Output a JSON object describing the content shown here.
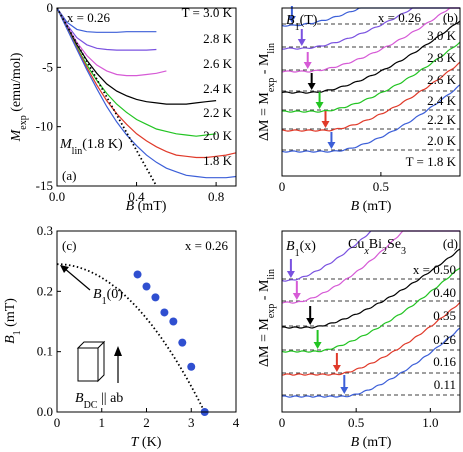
{
  "chart_data": [
    {
      "id": "a",
      "type": "line",
      "panel_label": "(a)",
      "xlabel_main": "B",
      "xlabel_unit": " (mT)",
      "ylabel_main": "M",
      "ylabel_sub": "exp",
      "ylabel_unit": " (emu/mol)",
      "xlim": [
        0,
        0.9
      ],
      "ylim": [
        -15,
        0
      ],
      "xticks": [
        0.0,
        0.4,
        0.8
      ],
      "xtick_labels": [
        "0.0",
        "0.4",
        "0.8"
      ],
      "yticks": [
        0,
        -5,
        -10,
        -15
      ],
      "ytick_labels": [
        "0",
        "-5",
        "-10",
        "-15"
      ],
      "annotation": "x = 0.26",
      "line_label": {
        "main": "M",
        "sub": "lin",
        "paren": "(1.8 K)"
      },
      "series": [
        {
          "name": "T = 3.0 K",
          "color": "#3c5fd8",
          "x": [
            0,
            0.05,
            0.1,
            0.15,
            0.2,
            0.25,
            0.3,
            0.35,
            0.4,
            0.45,
            0.5
          ],
          "y": [
            0,
            -1.2,
            -1.8,
            -2.0,
            -2.05,
            -2.05,
            -2.05,
            -2.0,
            -2.0,
            -2.0,
            -2.0
          ]
        },
        {
          "name": "2.8 K",
          "color": "#7a52e0",
          "x": [
            0,
            0.05,
            0.1,
            0.15,
            0.2,
            0.25,
            0.3,
            0.35,
            0.4,
            0.45,
            0.5
          ],
          "y": [
            0,
            -1.4,
            -2.5,
            -3.1,
            -3.4,
            -3.5,
            -3.55,
            -3.55,
            -3.55,
            -3.55,
            -3.5
          ]
        },
        {
          "name": "2.6 K",
          "color": "#d65ad6",
          "x": [
            0,
            0.05,
            0.1,
            0.15,
            0.2,
            0.25,
            0.3,
            0.35,
            0.4,
            0.45,
            0.5,
            0.55
          ],
          "y": [
            0,
            -1.5,
            -2.9,
            -4.0,
            -4.8,
            -5.3,
            -5.6,
            -5.7,
            -5.7,
            -5.6,
            -5.5,
            -5.3
          ]
        },
        {
          "name": "2.4 K",
          "color": "#000000",
          "x": [
            0,
            0.05,
            0.1,
            0.15,
            0.2,
            0.25,
            0.3,
            0.35,
            0.4,
            0.45,
            0.5,
            0.55,
            0.6,
            0.65,
            0.7,
            0.75,
            0.8
          ],
          "y": [
            0,
            -1.6,
            -3.1,
            -4.4,
            -5.5,
            -6.4,
            -7.0,
            -7.4,
            -7.7,
            -7.9,
            -8.0,
            -8.1,
            -8.1,
            -8.1,
            -8.0,
            -7.9,
            -7.8
          ]
        },
        {
          "name": "2.2 K",
          "color": "#22c422",
          "x": [
            0,
            0.05,
            0.1,
            0.15,
            0.2,
            0.25,
            0.3,
            0.35,
            0.4,
            0.45,
            0.5,
            0.55,
            0.6,
            0.65,
            0.7,
            0.75,
            0.8
          ],
          "y": [
            0,
            -1.65,
            -3.3,
            -4.8,
            -6.1,
            -7.2,
            -8.1,
            -8.8,
            -9.4,
            -9.8,
            -10.2,
            -10.4,
            -10.6,
            -10.7,
            -10.8,
            -10.7,
            -10.6
          ]
        },
        {
          "name": "2.0 K",
          "color": "#e03a2a",
          "x": [
            0,
            0.05,
            0.1,
            0.15,
            0.2,
            0.25,
            0.3,
            0.35,
            0.4,
            0.45,
            0.5,
            0.55,
            0.6,
            0.65,
            0.7,
            0.75,
            0.8,
            0.85,
            0.9
          ],
          "y": [
            0,
            -1.7,
            -3.4,
            -5.0,
            -6.5,
            -7.8,
            -8.9,
            -9.8,
            -10.6,
            -11.2,
            -11.7,
            -12.1,
            -12.4,
            -12.5,
            -12.6,
            -12.6,
            -12.5,
            -12.4,
            -12.2
          ]
        },
        {
          "name": "1.8 K",
          "color": "#3c5fd8",
          "x": [
            0,
            0.05,
            0.1,
            0.15,
            0.2,
            0.25,
            0.3,
            0.35,
            0.4,
            0.45,
            0.5,
            0.55,
            0.6,
            0.65,
            0.7,
            0.75,
            0.8,
            0.85,
            0.9
          ],
          "y": [
            0,
            -1.75,
            -3.5,
            -5.2,
            -6.8,
            -8.3,
            -9.6,
            -10.7,
            -11.6,
            -12.4,
            -13.0,
            -13.5,
            -13.8,
            -14.1,
            -14.2,
            -14.3,
            -14.3,
            -14.3,
            -14.2
          ]
        }
      ],
      "linear_fit": {
        "x": [
          0,
          0.5
        ],
        "y": [
          0,
          -15.0
        ],
        "style": "dotted"
      }
    },
    {
      "id": "b",
      "type": "line",
      "panel_label": "(b)",
      "xlabel_main": "B",
      "xlabel_unit": " (mT)",
      "ylabel_text": "ΔM = M",
      "ylabel_sub1": "exp",
      "ylabel_mid": " - M",
      "ylabel_sub2": "lin",
      "xlim": [
        0,
        0.9
      ],
      "xticks": [
        0,
        0.5
      ],
      "xtick_labels": [
        "0",
        "0.5"
      ],
      "annotation": "x = 0.26",
      "marker_label": {
        "main": "B",
        "sub": "1",
        "paren": "(T)"
      },
      "series": [
        {
          "name": "3.0 K",
          "color": "#3c5fd8",
          "onset": 0.05,
          "slope": 1.6,
          "arrow_x": 0.05
        },
        {
          "name": "2.8 K",
          "color": "#7a52e0",
          "onset": 0.1,
          "slope": 1.7,
          "arrow_x": 0.1
        },
        {
          "name": "2.6 K",
          "color": "#d65ad6",
          "onset": 0.13,
          "slope": 1.8,
          "arrow_x": 0.13
        },
        {
          "name": "2.4 K",
          "color": "#000000",
          "onset": 0.15,
          "slope": 1.9,
          "arrow_x": 0.15
        },
        {
          "name": "2.2 K",
          "color": "#22c422",
          "onset": 0.19,
          "slope": 2.0,
          "arrow_x": 0.19
        },
        {
          "name": "2.0 K",
          "color": "#e03a2a",
          "onset": 0.22,
          "slope": 2.1,
          "arrow_x": 0.22
        },
        {
          "name": "T = 1.8 K",
          "color": "#3c5fd8",
          "onset": 0.25,
          "slope": 2.2,
          "arrow_x": 0.25
        }
      ]
    },
    {
      "id": "c",
      "type": "scatter",
      "panel_label": "(c)",
      "xlabel_main": "T",
      "xlabel_unit": " (K)",
      "ylabel_main": "B",
      "ylabel_sub": "1",
      "ylabel_unit": " (mT)",
      "xlim": [
        0,
        4
      ],
      "ylim": [
        0,
        0.3
      ],
      "xticks": [
        0,
        1,
        2,
        3,
        4
      ],
      "xtick_labels": [
        "0",
        "1",
        "2",
        "3",
        "4"
      ],
      "yticks": [
        0,
        0.1,
        0.2,
        0.3
      ],
      "ytick_labels": [
        "0.0",
        "0.1",
        "0.2",
        "0.3"
      ],
      "annotation": "x = 0.26",
      "fit_label": {
        "main": "B",
        "sub": "1",
        "paren": "(0)"
      },
      "field_label": {
        "main": "B",
        "sub": "DC",
        "rest": " || ab"
      },
      "points": {
        "color": "#2f4fd0",
        "x": [
          1.8,
          2.0,
          2.2,
          2.4,
          2.6,
          2.8,
          3.0,
          3.3
        ],
        "y": [
          0.228,
          0.208,
          0.19,
          0.165,
          0.15,
          0.115,
          0.075,
          0.0
        ]
      },
      "fit_curve": {
        "B0": 0.245,
        "Tc": 3.3,
        "style": "dotted"
      }
    },
    {
      "id": "d",
      "type": "line",
      "panel_label": "(d)",
      "xlabel_main": "B",
      "xlabel_unit": " (mT)",
      "ylabel_text": "ΔM = M",
      "ylabel_sub1": "exp",
      "ylabel_mid": " - M",
      "ylabel_sub2": "lin",
      "xlim": [
        0,
        1.2
      ],
      "xticks": [
        0,
        0.5,
        1.0
      ],
      "xtick_labels": [
        "0",
        "0.5",
        "1.0"
      ],
      "marker_label": {
        "main": "B",
        "sub": "1",
        "paren": "(x)"
      },
      "compound": {
        "a": "Cu",
        "b": "x",
        "c": "Bi",
        "d": "2",
        "e": "Se",
        "f": "3"
      },
      "series": [
        {
          "name": "x = 0.50",
          "color": "#7a52e0",
          "onset": 0.05,
          "slope": 2.2,
          "arrow_x": 0.06
        },
        {
          "name": "0.40",
          "color": "#d65ad6",
          "onset": 0.09,
          "slope": 2.1,
          "arrow_x": 0.1
        },
        {
          "name": "0.35",
          "color": "#000000",
          "onset": 0.19,
          "slope": 1.4,
          "arrow_x": 0.19
        },
        {
          "name": "0.26",
          "color": "#22c422",
          "onset": 0.23,
          "slope": 1.6,
          "arrow_x": 0.24
        },
        {
          "name": "0.16",
          "color": "#e03a2a",
          "onset": 0.36,
          "slope": 1.7,
          "arrow_x": 0.37
        },
        {
          "name": "0.11",
          "color": "#3c5fd8",
          "onset": 0.42,
          "slope": 1.8,
          "arrow_x": 0.42
        }
      ]
    }
  ]
}
